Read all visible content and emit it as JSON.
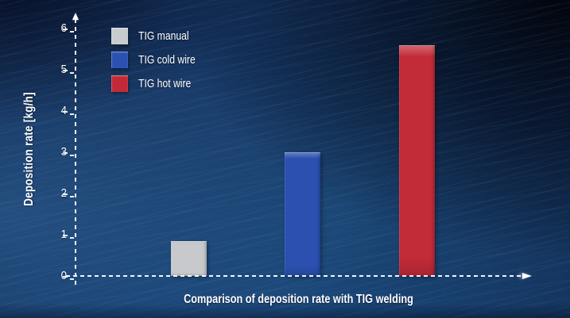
{
  "chart_data": {
    "type": "bar",
    "title": "Comparison of deposition rate with TIG welding",
    "ylabel": "Deposition rate [kg/h]",
    "ylim": [
      0,
      6
    ],
    "yticks": [
      0,
      1,
      2,
      3,
      4,
      5,
      6
    ],
    "categories": [
      "TIG manual",
      "TIG cold wire",
      "TIG hot wire"
    ],
    "values": [
      0.85,
      3.0,
      5.6
    ],
    "colors": [
      "#c7c9cc",
      "#2b50b0",
      "#c22b38"
    ],
    "grid": false,
    "legend_position": "top-left",
    "legend": [
      {
        "label": "TIG manual",
        "color": "#c9cccf"
      },
      {
        "label": "TIG cold wire",
        "color": "#2b52b3"
      },
      {
        "label": "TIG hot wire",
        "color": "#c32a38"
      }
    ],
    "axis_color": "#ffffff",
    "text_color": "#ffffff",
    "background_base": "#173a69"
  }
}
